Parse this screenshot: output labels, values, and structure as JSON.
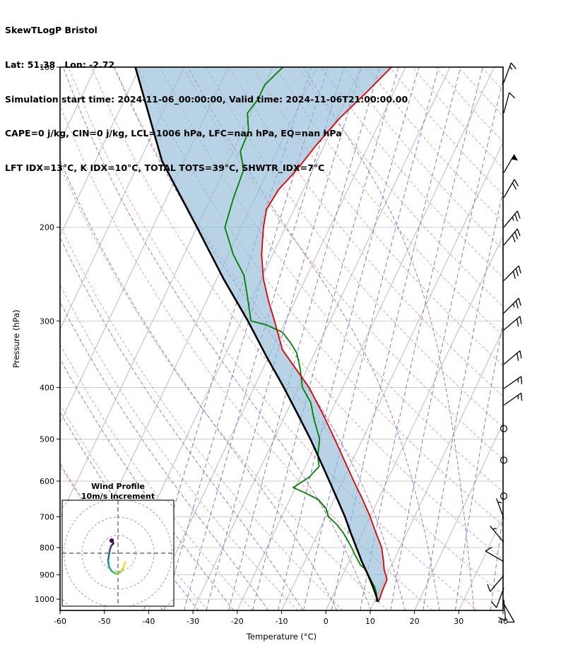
{
  "header": {
    "title": "SkewTLogP Bristol",
    "location": "Lat: 51.38   Lon: -2.72",
    "times": "Simulation start time: 2024-11-06_00:00:00, Valid time: 2024-11-06T21:00:00.00",
    "indices_line1": "CAPE=0 j/kg, CIN=0 j/kg, LCL=1006 hPa, LFC=nan hPa, EQ=nan hPa",
    "indices_line2": "LFT IDX=13°C, K IDX=10°C, TOTAL TOTS=39°C, SHWTR_IDX=7°C"
  },
  "chart_data": {
    "type": "skewt-logp",
    "xlabel": "Temperature (°C)",
    "ylabel": "Pressure (hPa)",
    "xlim": [
      -60,
      40
    ],
    "plim": [
      100,
      1050
    ],
    "x_ticks": [
      -60,
      -50,
      -40,
      -30,
      -20,
      -10,
      0,
      10,
      20,
      30,
      40
    ],
    "y_ticks": [
      100,
      200,
      300,
      400,
      500,
      600,
      700,
      800,
      900,
      1000
    ],
    "skew_degC_over_height": 58,
    "colors": {
      "temperature": "#e00000",
      "dewpoint": "#007f00",
      "parcel": "#000000",
      "cin_shading": "#92bcd8",
      "isotherm": "#ababab",
      "isobar": "#c9c9c9",
      "dry_adiabat": "#e08a8a",
      "moist_adiabat": "#9868b8",
      "mixing_ratio": "#5560d4",
      "wind_barb": "#000000"
    },
    "isotherms_degC": {
      "min": -120,
      "max": 40,
      "step": 10
    },
    "dry_adiabats_theta_degC": {
      "min": -40,
      "max": 220,
      "step": 10
    },
    "moist_adiabats_thetaw_degC": [
      -40,
      -32,
      -24,
      -16,
      -8,
      0,
      8,
      16,
      24,
      32
    ],
    "mixing_ratio_g_kg": [
      0.1,
      0.16,
      0.25,
      0.4,
      0.63,
      1,
      1.6,
      2.5,
      4,
      6.3,
      10,
      16,
      25,
      40
    ],
    "temperature_profile": [
      [
        1012,
        10.9
      ],
      [
        1000,
        10.9
      ],
      [
        975,
        10.7
      ],
      [
        950,
        10.6
      ],
      [
        918,
        10.5
      ],
      [
        880,
        8.8
      ],
      [
        850,
        7.8
      ],
      [
        800,
        5.9
      ],
      [
        750,
        3.0
      ],
      [
        700,
        0.0
      ],
      [
        650,
        -3.5
      ],
      [
        600,
        -7.5
      ],
      [
        550,
        -11.7
      ],
      [
        500,
        -16.3
      ],
      [
        450,
        -21.5
      ],
      [
        400,
        -27.6
      ],
      [
        340,
        -37.6
      ],
      [
        300,
        -42.5
      ],
      [
        275,
        -46.0
      ],
      [
        250,
        -49.5
      ],
      [
        225,
        -52.5
      ],
      [
        200,
        -55.0
      ],
      [
        185,
        -56.2
      ],
      [
        170,
        -55.6
      ],
      [
        156,
        -53.6
      ],
      [
        140,
        -51.8
      ],
      [
        125,
        -49.5
      ],
      [
        111,
        -46.0
      ],
      [
        100,
        -43.2
      ]
    ],
    "dewpoint_profile": [
      [
        1012,
        10.4
      ],
      [
        1000,
        10.3
      ],
      [
        975,
        9.6
      ],
      [
        950,
        8.6
      ],
      [
        925,
        7.2
      ],
      [
        900,
        5.8
      ],
      [
        875,
        4.2
      ],
      [
        863,
        3.0
      ],
      [
        850,
        2.2
      ],
      [
        825,
        0.6
      ],
      [
        800,
        -0.9
      ],
      [
        775,
        -2.6
      ],
      [
        750,
        -4.4
      ],
      [
        725,
        -6.6
      ],
      [
        700,
        -9.4
      ],
      [
        676,
        -10.8
      ],
      [
        650,
        -13.5
      ],
      [
        630,
        -17.5
      ],
      [
        617,
        -20.5
      ],
      [
        590,
        -18.0
      ],
      [
        563,
        -16.9
      ],
      [
        538,
        -18.3
      ],
      [
        500,
        -19.7
      ],
      [
        460,
        -23.0
      ],
      [
        427,
        -25.6
      ],
      [
        400,
        -29.1
      ],
      [
        370,
        -31.5
      ],
      [
        345,
        -34.0
      ],
      [
        330,
        -36.5
      ],
      [
        315,
        -39.5
      ],
      [
        305,
        -44.0
      ],
      [
        300,
        -47.8
      ],
      [
        270,
        -51.2
      ],
      [
        246,
        -54.3
      ],
      [
        225,
        -58.9
      ],
      [
        200,
        -63.7
      ],
      [
        176,
        -64.9
      ],
      [
        156,
        -65.6
      ],
      [
        144,
        -68.3
      ],
      [
        132,
        -68.6
      ],
      [
        122,
        -70.8
      ],
      [
        115,
        -69.9
      ],
      [
        108,
        -69.9
      ],
      [
        100,
        -67.7
      ]
    ],
    "parcel_profile": [
      [
        1012,
        10.9
      ],
      [
        1006,
        10.6
      ],
      [
        1000,
        10.4
      ],
      [
        950,
        8.2
      ],
      [
        900,
        5.7
      ],
      [
        850,
        2.9
      ],
      [
        800,
        0.2
      ],
      [
        750,
        -2.7
      ],
      [
        700,
        -5.7
      ],
      [
        650,
        -9.2
      ],
      [
        600,
        -13.0
      ],
      [
        550,
        -17.2
      ],
      [
        500,
        -21.8
      ],
      [
        450,
        -27.2
      ],
      [
        400,
        -33.3
      ],
      [
        350,
        -40.5
      ],
      [
        300,
        -48.5
      ],
      [
        250,
        -58.5
      ],
      [
        200,
        -70.0
      ],
      [
        150,
        -85.0
      ],
      [
        100,
        -101.0
      ]
    ],
    "wind_barbs": [
      {
        "p": 107,
        "speed_kt": 15,
        "dir_deg": 20
      },
      {
        "p": 122,
        "speed_kt": 10,
        "dir_deg": 15
      },
      {
        "p": 158,
        "speed_kt": 50,
        "dir_deg": 30
      },
      {
        "p": 176,
        "speed_kt": 20,
        "dir_deg": 30
      },
      {
        "p": 200,
        "speed_kt": 25,
        "dir_deg": 40
      },
      {
        "p": 216,
        "speed_kt": 30,
        "dir_deg": 40
      },
      {
        "p": 252,
        "speed_kt": 30,
        "dir_deg": 45
      },
      {
        "p": 290,
        "speed_kt": 25,
        "dir_deg": 45
      },
      {
        "p": 312,
        "speed_kt": 20,
        "dir_deg": 50
      },
      {
        "p": 362,
        "speed_kt": 20,
        "dir_deg": 50
      },
      {
        "p": 402,
        "speed_kt": 15,
        "dir_deg": 55
      },
      {
        "p": 432,
        "speed_kt": 15,
        "dir_deg": 55
      },
      {
        "p": 478,
        "speed_kt": 0,
        "dir_deg": 0
      },
      {
        "p": 548,
        "speed_kt": 0,
        "dir_deg": 0
      },
      {
        "p": 640,
        "speed_kt": 0,
        "dir_deg": 0
      },
      {
        "p": 705,
        "speed_kt": 5,
        "dir_deg": 340
      },
      {
        "p": 782,
        "speed_kt": 5,
        "dir_deg": 320
      },
      {
        "p": 850,
        "speed_kt": 10,
        "dir_deg": 300
      },
      {
        "p": 902,
        "speed_kt": 10,
        "dir_deg": 220
      },
      {
        "p": 952,
        "speed_kt": 12,
        "dir_deg": 200
      },
      {
        "p": 1002,
        "speed_kt": 10,
        "dir_deg": 175
      },
      {
        "p": 1020,
        "speed_kt": 8,
        "dir_deg": 150
      }
    ],
    "hodograph": {
      "title": "Wind Profile",
      "subtitle": "10m/s increment",
      "ring_interval_ms": 10,
      "rings_ms": [
        10,
        20,
        30,
        40
      ],
      "trace_uv_ms": [
        {
          "u": -3.5,
          "v": 7.0,
          "c": "#46085c"
        },
        {
          "u": -2.5,
          "v": 5.5,
          "c": "#471f6e"
        },
        {
          "u": -3.8,
          "v": 4.0,
          "c": "#414487"
        },
        {
          "u": -4.5,
          "v": 2.0,
          "c": "#32648e"
        },
        {
          "u": -5.0,
          "v": -1.0,
          "c": "#2a788e"
        },
        {
          "u": -5.5,
          "v": -4.0,
          "c": "#21918c"
        },
        {
          "u": -5.0,
          "v": -7.5,
          "c": "#22a884"
        },
        {
          "u": -3.5,
          "v": -10.0,
          "c": "#44bf70"
        },
        {
          "u": -1.0,
          "v": -11.5,
          "c": "#7ad151"
        },
        {
          "u": 1.5,
          "v": -10.5,
          "c": "#bddf26"
        },
        {
          "u": 3.0,
          "v": -8.0,
          "c": "#e7e419"
        },
        {
          "u": 4.0,
          "v": -5.0,
          "c": "#fde725"
        }
      ]
    }
  }
}
